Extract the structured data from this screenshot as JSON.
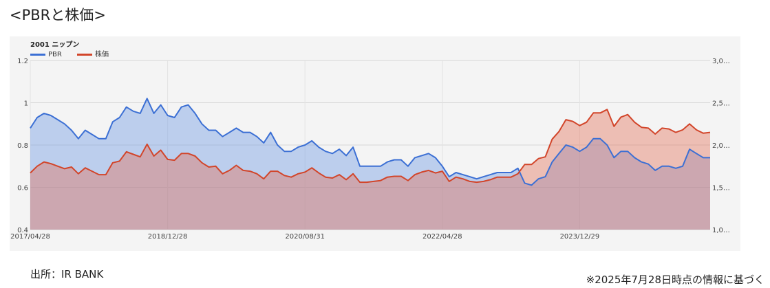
{
  "page": {
    "heading": "<PBRと株価>",
    "source": "出所：IR BANK",
    "date_note": "※2025年7月28日時点の情報に基づく"
  },
  "chart_data": {
    "type": "area",
    "title": "2001 ニップン",
    "legend_placement": "top-left",
    "grid": true,
    "x_tick_labels": [
      "2017/04/28",
      "2018/12/28",
      "2020/08/31",
      "2022/04/28",
      "2023/12/29"
    ],
    "x_tick_index": [
      0,
      20,
      40,
      60,
      80
    ],
    "y_left": {
      "ylim": [
        0.4,
        1.2
      ],
      "tick_labels": [
        "0.4",
        "0.6",
        "0.8",
        "1",
        "1.2"
      ],
      "tick_values": [
        0.4,
        0.6,
        0.8,
        1.0,
        1.2
      ]
    },
    "y_right": {
      "ylim": [
        1000,
        3000
      ],
      "tick_labels": [
        "1,0…",
        "1,5…",
        "2,0…",
        "2,5…",
        "3,0…"
      ],
      "tick_values": [
        1000,
        1500,
        2000,
        2500,
        3000
      ]
    },
    "series": [
      {
        "name": "PBR",
        "axis": "left",
        "color": "#3b6fd4",
        "fill": "rgba(120,160,228,0.45)",
        "values": [
          0.88,
          0.93,
          0.95,
          0.94,
          0.92,
          0.9,
          0.87,
          0.83,
          0.87,
          0.85,
          0.83,
          0.83,
          0.91,
          0.93,
          0.98,
          0.96,
          0.95,
          1.02,
          0.95,
          0.99,
          0.94,
          0.93,
          0.98,
          0.99,
          0.95,
          0.9,
          0.87,
          0.87,
          0.84,
          0.86,
          0.88,
          0.86,
          0.86,
          0.84,
          0.81,
          0.86,
          0.8,
          0.77,
          0.77,
          0.79,
          0.8,
          0.82,
          0.79,
          0.77,
          0.76,
          0.78,
          0.75,
          0.79,
          0.7,
          0.7,
          0.7,
          0.7,
          0.72,
          0.73,
          0.73,
          0.7,
          0.74,
          0.75,
          0.76,
          0.74,
          0.7,
          0.65,
          0.67,
          0.66,
          0.65,
          0.64,
          0.65,
          0.66,
          0.67,
          0.67,
          0.67,
          0.69,
          0.62,
          0.61,
          0.64,
          0.65,
          0.72,
          0.76,
          0.8,
          0.79,
          0.77,
          0.79,
          0.83,
          0.83,
          0.8,
          0.74,
          0.77,
          0.77,
          0.74,
          0.72,
          0.71,
          0.68,
          0.7,
          0.7,
          0.69,
          0.7,
          0.78,
          0.76,
          0.74,
          0.74
        ]
      },
      {
        "name": "株価",
        "axis": "right",
        "color": "#d2452a",
        "fill": "rgba(228,110,85,0.4)",
        "values": [
          1670,
          1750,
          1800,
          1780,
          1750,
          1720,
          1740,
          1660,
          1730,
          1690,
          1650,
          1650,
          1790,
          1810,
          1920,
          1890,
          1860,
          2010,
          1870,
          1940,
          1830,
          1820,
          1900,
          1900,
          1870,
          1790,
          1740,
          1750,
          1660,
          1700,
          1760,
          1700,
          1690,
          1660,
          1600,
          1690,
          1690,
          1640,
          1620,
          1660,
          1680,
          1730,
          1670,
          1620,
          1610,
          1650,
          1590,
          1660,
          1560,
          1560,
          1570,
          1580,
          1620,
          1630,
          1630,
          1580,
          1650,
          1680,
          1700,
          1670,
          1690,
          1570,
          1620,
          1600,
          1570,
          1560,
          1570,
          1590,
          1620,
          1620,
          1620,
          1660,
          1770,
          1770,
          1840,
          1860,
          2070,
          2160,
          2300,
          2280,
          2230,
          2270,
          2380,
          2380,
          2420,
          2220,
          2330,
          2360,
          2270,
          2210,
          2200,
          2130,
          2200,
          2190,
          2150,
          2180,
          2250,
          2180,
          2140,
          2150
        ]
      }
    ]
  }
}
